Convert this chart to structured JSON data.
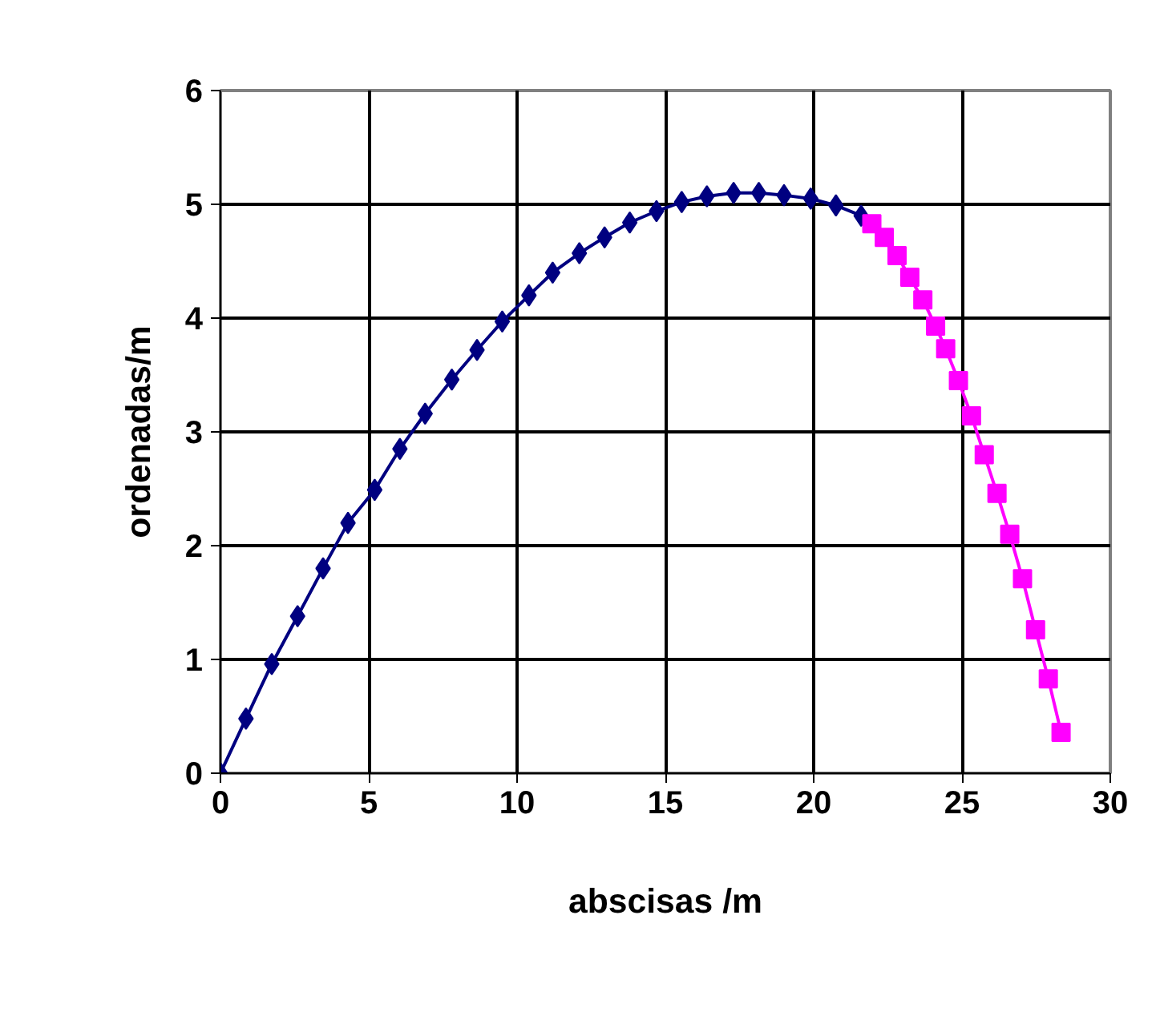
{
  "chart_data": {
    "type": "line",
    "xlabel": "abscisas /m",
    "ylabel": "ordenadas/m",
    "xlim": [
      0,
      30
    ],
    "ylim": [
      0,
      6
    ],
    "xticks": [
      0,
      5,
      10,
      15,
      20,
      25,
      30
    ],
    "yticks": [
      0,
      1,
      2,
      3,
      4,
      5,
      6
    ],
    "grid": true,
    "series": [
      {
        "color": "#000080",
        "marker": "diamond",
        "x": [
          0,
          0.86,
          1.73,
          2.6,
          3.46,
          4.3,
          5.2,
          6.05,
          6.9,
          7.8,
          8.65,
          9.5,
          10.4,
          11.2,
          12.1,
          12.95,
          13.8,
          14.7,
          15.55,
          16.4,
          17.3,
          18.15,
          19.0,
          19.9,
          20.75,
          21.6
        ],
        "values": [
          0,
          0.48,
          0.96,
          1.38,
          1.8,
          2.2,
          2.49,
          2.85,
          3.16,
          3.46,
          3.72,
          3.97,
          4.2,
          4.4,
          4.57,
          4.71,
          4.84,
          4.94,
          5.02,
          5.07,
          5.1,
          5.1,
          5.08,
          5.05,
          4.99,
          4.9
        ]
      },
      {
        "color": "#ff00ff",
        "marker": "square",
        "x": [
          21.96,
          22.38,
          22.81,
          23.24,
          23.68,
          24.11,
          24.45,
          24.88,
          25.32,
          25.75,
          26.18,
          26.61,
          27.04,
          27.48,
          27.91,
          28.34
        ],
        "values": [
          4.83,
          4.71,
          4.55,
          4.36,
          4.16,
          3.93,
          3.73,
          3.45,
          3.14,
          2.8,
          2.46,
          2.1,
          1.71,
          1.26,
          0.83,
          0.36
        ]
      }
    ]
  }
}
